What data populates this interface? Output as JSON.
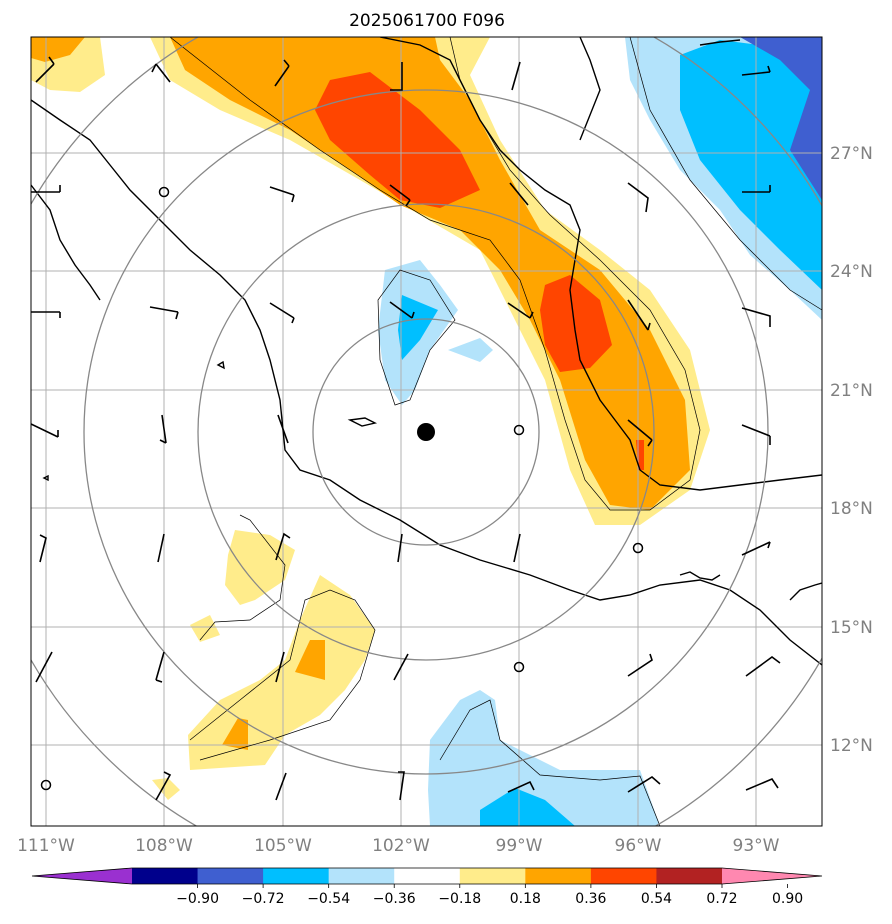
{
  "title": "2025061700 F096",
  "map": {
    "lon_ticks": [
      "111°W",
      "108°W",
      "105°W",
      "102°W",
      "99°W",
      "96°W",
      "93°W"
    ],
    "lat_ticks": [
      "27°N",
      "24°N",
      "21°N",
      "18°N",
      "15°N",
      "12°N"
    ],
    "grid": true,
    "center_marker": "filled-circle",
    "range_rings": 4
  },
  "colorbar": {
    "labels": [
      "−0.90",
      "−0.72",
      "−0.54",
      "−0.36",
      "−0.18",
      "0.18",
      "0.36",
      "0.54",
      "0.72",
      "0.90"
    ],
    "colors": [
      "#9a30d0",
      "#00008c",
      "#3f5fd0",
      "#00bfff",
      "#b3e3fb",
      "#ffffff",
      "#ffec8b",
      "#ffa500",
      "#ff4500",
      "#b22222",
      "#ff88b0"
    ],
    "extend": "both"
  }
}
